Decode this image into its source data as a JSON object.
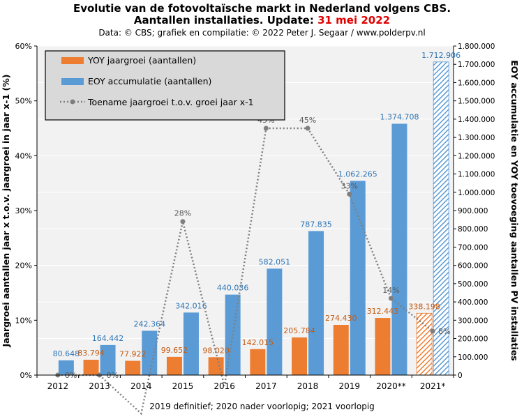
{
  "header": {
    "title_line1": "Evolutie van de fotovoltaïsche markt in Nederland volgens CBS.",
    "title_line2_prefix": "Aantallen installaties. Update: ",
    "title_line2_date": "31 mei 2022",
    "subtitle": "Data: © CBS; grafiek en compilatie: © 2022 Peter J. Segaar / www.polderpv.nl"
  },
  "footnote": "2019 definitief; 2020 nader voorlopig; 2021 voorlopig",
  "colors": {
    "yoy": "#ed7d31",
    "eoy": "#5b9bd5",
    "line": "#7f7f7f",
    "plot_bg": "#f2f2f2",
    "legend_bg": "#d9d9d9",
    "title_accent": "#e00000"
  },
  "chart_data": {
    "type": "bar",
    "categories": [
      "2012",
      "2013",
      "2014",
      "2015",
      "2016",
      "2017",
      "2018",
      "2019",
      "2020**",
      "2021*"
    ],
    "ylabel_left": "Jaargroei aantallen jaar x t.o.v. jaargroei in jaar x-1 (%)",
    "ylabel_right": "EOY accumulatie en YOY toevoeging aantallen PV installaties",
    "left_ticks": [
      "0%",
      "10%",
      "20%",
      "30%",
      "40%",
      "50%",
      "60%"
    ],
    "left_ylim": [
      0,
      60
    ],
    "right_ticks": [
      "0",
      "100.000",
      "200.000",
      "300.000",
      "400.000",
      "500.000",
      "600.000",
      "700.000",
      "800.000",
      "900.000",
      "1.000.000",
      "1.100.000",
      "1.200.000",
      "1.300.000",
      "1.400.000",
      "1.500.000",
      "1.600.000",
      "1.700.000",
      "1.800.000"
    ],
    "right_ylim": [
      0,
      1800000
    ],
    "grid": true,
    "legend_position": "top-left",
    "hatched_last_category": true,
    "series": [
      {
        "name": "YOY jaargroei (aantallen)",
        "kind": "bar",
        "axis": "right",
        "values": [
          null,
          83794,
          77922,
          99652,
          98020,
          142015,
          205784,
          274430,
          312443,
          338198
        ],
        "labels": [
          "",
          "83.794",
          "77.922",
          "99.652",
          "98.020",
          "142.015",
          "205.784",
          "274.430",
          "312.443",
          "338.198"
        ]
      },
      {
        "name": "EOY accumulatie (aantallen)",
        "kind": "bar",
        "axis": "right",
        "values": [
          80648,
          164442,
          242364,
          342016,
          440036,
          582051,
          787835,
          1062265,
          1374708,
          1712906
        ],
        "labels": [
          "80.648",
          "164.442",
          "242.364",
          "342.016",
          "440.036",
          "582.051",
          "787.835",
          "1.062.265",
          "1.374.708",
          "1.712.906"
        ]
      },
      {
        "name": "Toename jaargroei t.o.v. groei jaar x-1",
        "kind": "line",
        "axis": "left",
        "values": [
          0,
          0,
          -7,
          28,
          -2,
          45,
          45,
          33,
          14,
          8
        ],
        "labels": [
          "0%",
          "0%",
          "",
          "28%",
          "",
          "45%",
          "45%",
          "33%",
          "14%",
          "8%"
        ]
      }
    ]
  }
}
